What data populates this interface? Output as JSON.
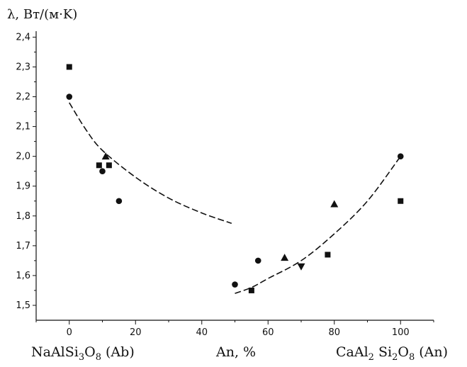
{
  "chart_data": {
    "type": "scatter",
    "title": "",
    "ylabel": "λ, Вт/(м·K)",
    "xlabel": "An, %",
    "xlim": [
      -10,
      110
    ],
    "ylim": [
      1.45,
      2.42
    ],
    "x_ticks": [
      "0",
      "20",
      "40",
      "60",
      "80",
      "100"
    ],
    "y_ticks": [
      "1,5",
      "1,6",
      "1,7",
      "1,8",
      "1,9",
      "2,0",
      "2,1",
      "2,2",
      "2,3",
      "2,4"
    ],
    "grid": false,
    "legend": "none",
    "endmembers": {
      "left": {
        "base": "NaAlSi",
        "s1": "3",
        "mid": "O",
        "s2": "8",
        "tail": " (Ab)"
      },
      "right": {
        "base": "CaAl",
        "s1": "2",
        "mid": " Si",
        "s2": "2",
        "tail2": "O",
        "s3": "8",
        "tail": " (An)"
      }
    },
    "series": [
      {
        "marker": "square",
        "points": [
          [
            0,
            2.3
          ],
          [
            9,
            1.97
          ],
          [
            12,
            1.97
          ],
          [
            55,
            1.55
          ],
          [
            78,
            1.67
          ],
          [
            100,
            1.85
          ]
        ]
      },
      {
        "marker": "circle",
        "points": [
          [
            0,
            2.2
          ],
          [
            10,
            1.95
          ],
          [
            15,
            1.85
          ],
          [
            50,
            1.57
          ],
          [
            57,
            1.65
          ],
          [
            100,
            2.0
          ]
        ]
      },
      {
        "marker": "triangle-up",
        "points": [
          [
            11,
            2.0
          ],
          [
            65,
            1.66
          ],
          [
            80,
            1.84
          ]
        ]
      },
      {
        "marker": "triangle-down",
        "points": [
          [
            70,
            1.63
          ]
        ]
      }
    ],
    "trend_lines": [
      {
        "points": [
          [
            0,
            2.18
          ],
          [
            5,
            2.09
          ],
          [
            10,
            2.02
          ],
          [
            20,
            1.93
          ],
          [
            30,
            1.86
          ],
          [
            40,
            1.81
          ],
          [
            49,
            1.775
          ]
        ]
      },
      {
        "points": [
          [
            50,
            1.54
          ],
          [
            55,
            1.56
          ],
          [
            60,
            1.59
          ],
          [
            70,
            1.65
          ],
          [
            80,
            1.74
          ],
          [
            90,
            1.85
          ],
          [
            100,
            2.0
          ]
        ]
      }
    ]
  }
}
